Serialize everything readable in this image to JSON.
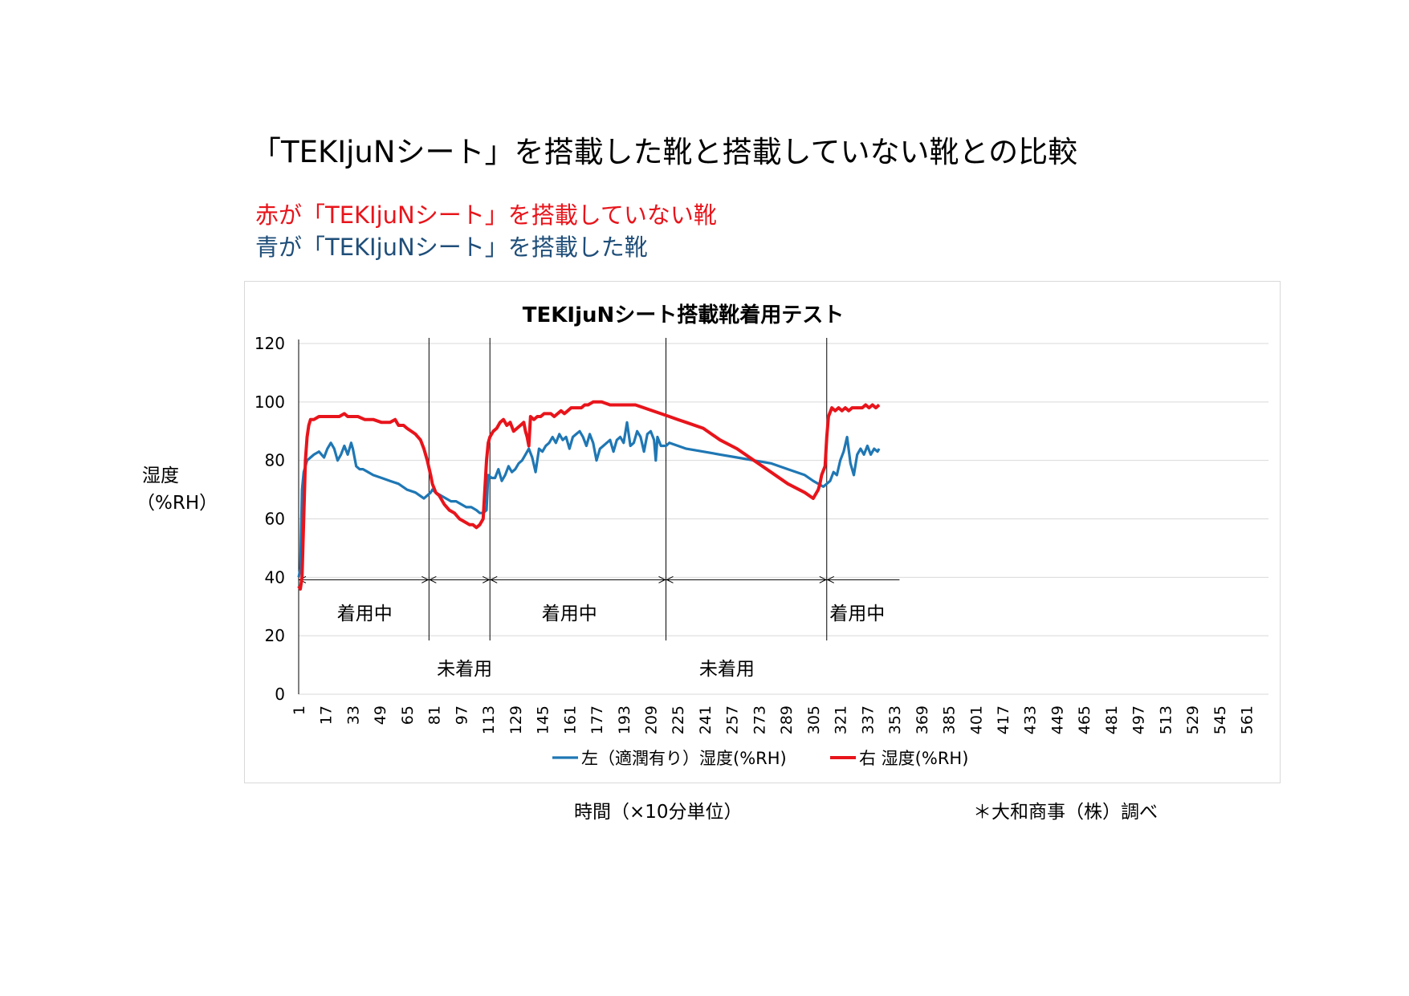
{
  "page": {
    "title": "「TEKIjuNシート」を搭載した靴と搭載していない靴との比較",
    "caption_red": "赤が「TEKIjuNシート」を搭載していない靴",
    "caption_blue": "青が「TEKIjuNシート」を搭載した靴",
    "ylabel_line1": "湿度",
    "ylabel_line2": "（%RH）",
    "xlabel": "時間（×10分単位）",
    "source": "＊大和商事（株）調べ",
    "colors": {
      "red_caption": "#e8141b",
      "blue_caption": "#1f4e79"
    }
  },
  "chart_data": {
    "type": "line",
    "title": "TEKIjuNシート搭載靴着用テスト",
    "ylim": [
      0,
      120
    ],
    "yticks": [
      "0",
      "20",
      "40",
      "60",
      "80",
      "100",
      "120"
    ],
    "xlim": [
      1,
      574
    ],
    "xticks": [
      "1",
      "17",
      "33",
      "49",
      "65",
      "81",
      "97",
      "113",
      "129",
      "145",
      "161",
      "177",
      "193",
      "209",
      "225",
      "241",
      "257",
      "273",
      "289",
      "305",
      "321",
      "337",
      "353",
      "369",
      "385",
      "401",
      "417",
      "433",
      "449",
      "465",
      "481",
      "497",
      "513",
      "529",
      "545",
      "561"
    ],
    "grid": true,
    "legend": "bottom",
    "series": [
      {
        "name": "左（適潤有り）湿度(%RH)",
        "color": "#1f77b4",
        "x": [
          1,
          2,
          3,
          4,
          6,
          8,
          10,
          13,
          16,
          18,
          20,
          22,
          24,
          26,
          28,
          30,
          32,
          33,
          35,
          37,
          39,
          42,
          45,
          50,
          55,
          60,
          65,
          70,
          75,
          77,
          79,
          80,
          82,
          85,
          88,
          91,
          94,
          97,
          100,
          103,
          106,
          108,
          110,
          112,
          113,
          115,
          117,
          119,
          121,
          123,
          125,
          127,
          129,
          131,
          133,
          135,
          137,
          139,
          141,
          143,
          145,
          147,
          149,
          151,
          153,
          155,
          157,
          159,
          161,
          163,
          165,
          167,
          169,
          171,
          173,
          175,
          177,
          179,
          181,
          183,
          185,
          187,
          189,
          191,
          193,
          195,
          197,
          199,
          201,
          203,
          205,
          207,
          209,
          211,
          212,
          213,
          215,
          218,
          220,
          230,
          240,
          250,
          260,
          270,
          280,
          290,
          300,
          305,
          308,
          311,
          313,
          315,
          317,
          319,
          321,
          323,
          325,
          327,
          329,
          331,
          333,
          335,
          337,
          339,
          341,
          343,
          344
        ],
        "y": [
          40,
          43,
          70,
          76,
          80,
          81,
          82,
          83,
          81,
          84,
          86,
          84,
          80,
          82,
          85,
          82,
          86,
          84,
          78,
          77,
          77,
          76,
          75,
          74,
          73,
          72,
          70,
          69,
          67,
          68,
          69,
          70,
          69,
          68,
          67,
          66,
          66,
          65,
          64,
          64,
          63,
          62,
          62,
          63,
          75,
          74,
          74,
          77,
          73,
          75,
          78,
          76,
          77,
          79,
          80,
          82,
          84,
          81,
          76,
          84,
          83,
          85,
          86,
          88,
          86,
          89,
          87,
          88,
          84,
          88,
          89,
          90,
          88,
          85,
          89,
          86,
          80,
          84,
          85,
          86,
          87,
          83,
          87,
          88,
          86,
          93,
          85,
          86,
          90,
          88,
          83,
          89,
          90,
          87,
          80,
          88,
          85,
          85,
          86,
          84,
          83,
          82,
          81,
          80,
          79,
          77,
          75,
          73,
          72,
          71,
          72,
          73,
          76,
          75,
          80,
          83,
          88,
          79,
          75,
          82,
          84,
          82,
          85,
          82,
          84,
          83,
          84
        ]
      },
      {
        "name": "右 湿度(%RH)",
        "color": "#e8141b",
        "x": [
          1,
          2,
          3,
          4,
          5,
          6,
          7,
          8,
          10,
          13,
          16,
          20,
          25,
          28,
          30,
          33,
          36,
          40,
          45,
          50,
          55,
          58,
          60,
          63,
          65,
          70,
          73,
          75,
          77,
          79,
          80,
          82,
          84,
          87,
          90,
          93,
          96,
          99,
          102,
          104,
          106,
          108,
          110,
          112,
          113,
          114,
          115,
          116,
          118,
          120,
          122,
          124,
          126,
          128,
          130,
          132,
          134,
          135,
          136,
          137,
          138,
          140,
          142,
          144,
          146,
          148,
          150,
          152,
          154,
          156,
          158,
          160,
          162,
          165,
          168,
          170,
          172,
          175,
          180,
          185,
          190,
          195,
          200,
          205,
          210,
          215,
          220,
          225,
          230,
          240,
          250,
          260,
          270,
          280,
          290,
          300,
          305,
          307,
          308,
          309,
          310,
          312,
          313,
          314,
          316,
          318,
          320,
          322,
          324,
          326,
          328,
          330,
          332,
          334,
          336,
          338,
          340,
          342,
          344
        ],
        "y": [
          37,
          36,
          40,
          60,
          80,
          88,
          92,
          94,
          94,
          95,
          95,
          95,
          95,
          96,
          95,
          95,
          95,
          94,
          94,
          93,
          93,
          94,
          92,
          92,
          91,
          89,
          87,
          84,
          80,
          75,
          72,
          69,
          68,
          65,
          63,
          62,
          60,
          59,
          58,
          58,
          57,
          58,
          60,
          80,
          86,
          88,
          89,
          90,
          91,
          93,
          94,
          92,
          93,
          90,
          91,
          92,
          93,
          90,
          88,
          85,
          95,
          94,
          95,
          95,
          96,
          96,
          96,
          95,
          96,
          97,
          96,
          97,
          98,
          98,
          98,
          99,
          99,
          100,
          100,
          99,
          99,
          99,
          99,
          98,
          97,
          96,
          95,
          94,
          93,
          91,
          87,
          84,
          80,
          76,
          72,
          69,
          67,
          69,
          70,
          72,
          75,
          78,
          88,
          95,
          98,
          97,
          98,
          97,
          98,
          97,
          98,
          98,
          98,
          98,
          99,
          98,
          99,
          98,
          99
        ]
      }
    ],
    "phase_labels": [
      {
        "text": "着用中",
        "x_center": 40,
        "row": "upper"
      },
      {
        "text": "未着用",
        "x_center": 99,
        "row": "lower"
      },
      {
        "text": "着用中",
        "x_center": 161,
        "row": "upper"
      },
      {
        "text": "未着用",
        "x_center": 254,
        "row": "lower"
      },
      {
        "text": "着用中",
        "x_center": 331,
        "row": "upper"
      }
    ],
    "phase_boundaries": [
      1,
      78,
      114,
      218,
      313
    ],
    "phase_arrow_end": 356
  }
}
